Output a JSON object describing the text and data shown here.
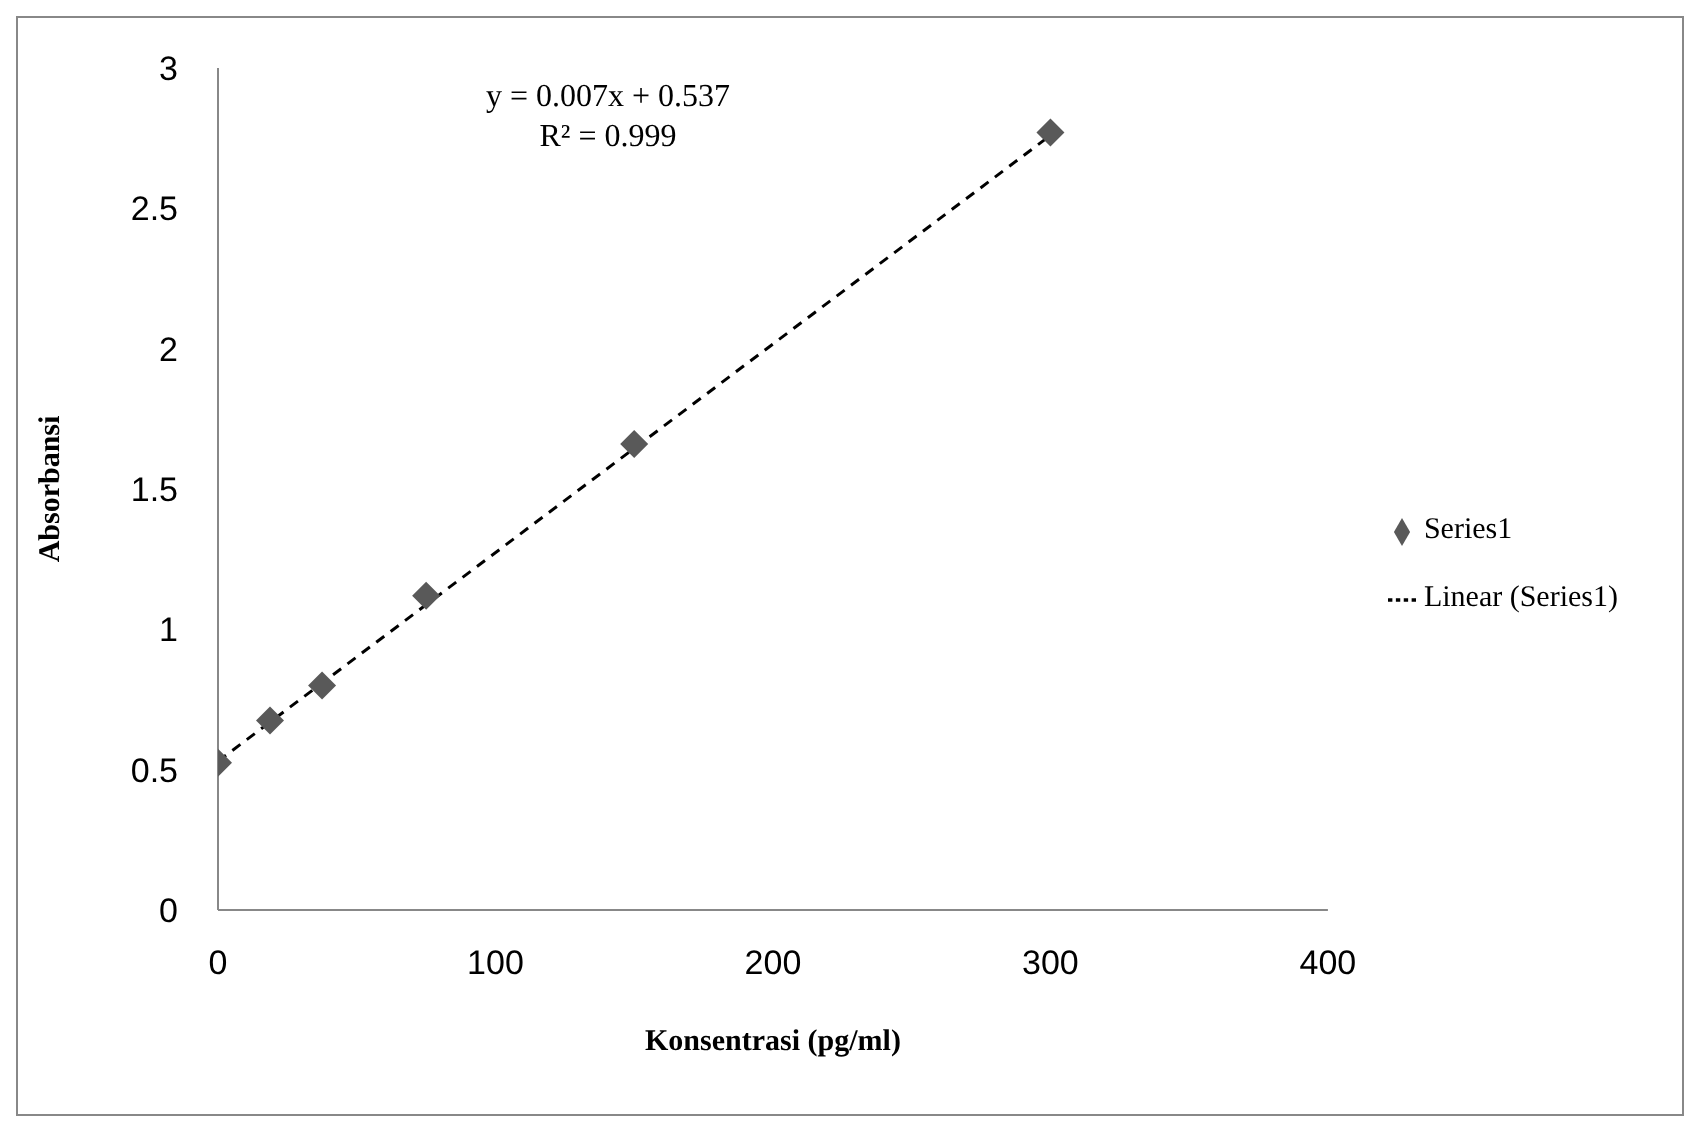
{
  "chart_data": {
    "type": "scatter",
    "xlabel": "Konsentrasi (pg/ml)",
    "ylabel": "Absorbansi",
    "x": [
      0,
      18.75,
      37.5,
      75,
      150,
      300
    ],
    "series": [
      {
        "name": "Series1",
        "color": "#595959",
        "marker": "diamond",
        "values": [
          0.525,
          0.675,
          0.8,
          1.12,
          1.66,
          2.77
        ]
      },
      {
        "name": "Linear (Series1)",
        "type": "line",
        "color": "#000000",
        "line_style": "dashed",
        "marker": "none",
        "x": [
          0,
          300
        ],
        "values": [
          0.53,
          2.76
        ]
      }
    ],
    "xlim": [
      0,
      400
    ],
    "xticks": [
      0,
      100,
      200,
      300,
      400
    ],
    "ylim": [
      0,
      3
    ],
    "yticks": [
      0,
      0.5,
      1,
      1.5,
      2,
      2.5,
      3
    ],
    "grid": false,
    "legend": "right",
    "annotations": [
      "y = 0.007x + 0.537",
      "R² = 0.999"
    ]
  }
}
